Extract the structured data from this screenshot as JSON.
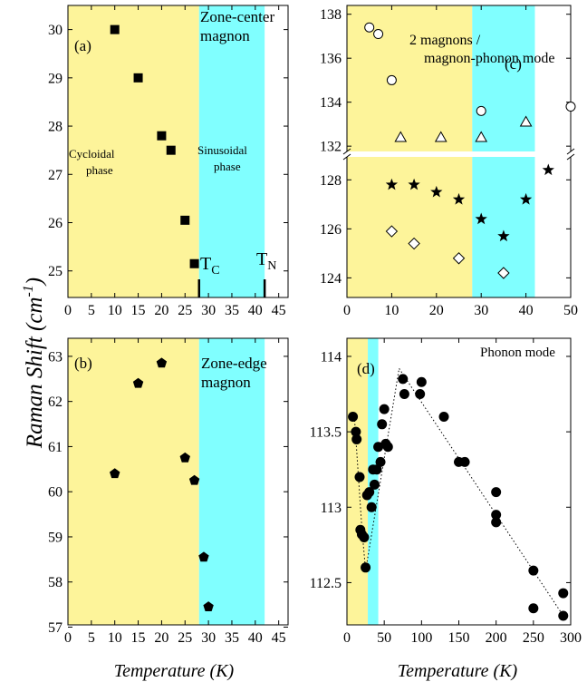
{
  "figure": {
    "ylabel": "Raman Shift (cm",
    "ylabel_sup": "-1",
    "ylabel_close": ")",
    "xlabel_left": "Temperature (K)",
    "xlabel_right": "Temperature (K)"
  },
  "colors": {
    "yellow": "#fdf49a",
    "cyan": "#80ffff",
    "marker": "#000000"
  },
  "chart_data": [
    {
      "id": "a",
      "type": "scatter",
      "panel_label": "(a)",
      "annotations": [
        "Zone-center",
        "magnon"
      ],
      "phase_labels": {
        "cycloidal": [
          "Cycloidal",
          "phase"
        ],
        "sinusoidal": [
          "Sinusoidal",
          "phase"
        ]
      },
      "transitions": {
        "TC": {
          "label": "T",
          "sub": "C",
          "x": 28
        },
        "TN": {
          "label": "T",
          "sub": "N",
          "x": 42
        }
      },
      "xlim": [
        0,
        47
      ],
      "ylim": [
        24.45,
        30.5
      ],
      "xticks": [
        0,
        5,
        10,
        15,
        20,
        25,
        30,
        35,
        40,
        45
      ],
      "yticks": [
        25,
        26,
        27,
        28,
        29,
        30
      ],
      "regions": [
        {
          "from": 0,
          "to": 28,
          "color": "yellow"
        },
        {
          "from": 28,
          "to": 42,
          "color": "cyan"
        }
      ],
      "series": [
        {
          "marker": "square",
          "x": [
            10,
            15,
            20,
            22,
            25,
            27
          ],
          "y": [
            30.0,
            29.0,
            27.8,
            27.5,
            26.05,
            25.15
          ]
        }
      ]
    },
    {
      "id": "b",
      "type": "scatter",
      "panel_label": "(b)",
      "annotations": [
        "Zone-edge",
        "magnon"
      ],
      "xlim": [
        0,
        47
      ],
      "ylim": [
        57.05,
        63.4
      ],
      "xticks": [
        0,
        5,
        10,
        15,
        20,
        25,
        30,
        35,
        40,
        45
      ],
      "yticks": [
        57,
        58,
        59,
        60,
        61,
        62,
        63
      ],
      "regions": [
        {
          "from": 0,
          "to": 28,
          "color": "yellow"
        },
        {
          "from": 28,
          "to": 42,
          "color": "cyan"
        }
      ],
      "series": [
        {
          "marker": "pentagon",
          "x": [
            10,
            15,
            20,
            25,
            27,
            29,
            30
          ],
          "y": [
            60.4,
            62.4,
            62.85,
            60.75,
            60.25,
            58.55,
            57.45
          ]
        }
      ]
    },
    {
      "id": "c",
      "type": "scatter",
      "panel_label": "(c)",
      "annotations": [
        "2 magnons /",
        "magnon-phonon mode"
      ],
      "xlim": [
        0,
        50
      ],
      "ylim_upper": [
        131.8,
        138.4
      ],
      "ylim_lower": [
        123.2,
        128.9
      ],
      "xticks": [
        0,
        10,
        20,
        30,
        40,
        50
      ],
      "yticks_upper": [
        132,
        134,
        136,
        138
      ],
      "yticks_lower": [
        124,
        126,
        128
      ],
      "regions": [
        {
          "from": 0,
          "to": 28,
          "color": "yellow"
        },
        {
          "from": 28,
          "to": 42,
          "color": "cyan"
        }
      ],
      "series": [
        {
          "marker": "circle-open",
          "x": [
            5,
            7,
            10,
            30,
            50
          ],
          "y": [
            137.4,
            137.1,
            135.0,
            133.6,
            133.8
          ]
        },
        {
          "marker": "triangle-open",
          "x": [
            12,
            21,
            30,
            40
          ],
          "y": [
            132.4,
            132.4,
            132.4,
            133.1
          ]
        },
        {
          "marker": "star",
          "x": [
            10,
            15,
            20,
            25,
            30,
            35,
            40,
            45
          ],
          "y": [
            127.8,
            127.8,
            127.5,
            127.2,
            126.4,
            125.7,
            127.2,
            128.4
          ]
        },
        {
          "marker": "diamond-open",
          "x": [
            10,
            15,
            25,
            35
          ],
          "y": [
            125.9,
            125.4,
            124.8,
            124.2
          ]
        }
      ]
    },
    {
      "id": "d",
      "type": "scatter",
      "panel_label": "(d)",
      "annotations": [
        "Phonon mode"
      ],
      "xlim": [
        0,
        300
      ],
      "ylim": [
        112.22,
        114.12
      ],
      "xticks": [
        0,
        50,
        100,
        150,
        200,
        250,
        300
      ],
      "yticks": [
        112.5,
        113.0,
        113.5,
        114.0
      ],
      "regions": [
        {
          "from": 0,
          "to": 28,
          "color": "yellow"
        },
        {
          "from": 28,
          "to": 42,
          "color": "cyan"
        }
      ],
      "series": [
        {
          "marker": "circle",
          "x": [
            8,
            12,
            13,
            17,
            18,
            20,
            23,
            25,
            27,
            30,
            33,
            35,
            37,
            40,
            42,
            45,
            47,
            50,
            52,
            55,
            75,
            77,
            98,
            100,
            130,
            150,
            158,
            200,
            200,
            200,
            250,
            250,
            290,
            290
          ],
          "y": [
            113.6,
            113.5,
            113.45,
            113.2,
            112.85,
            112.82,
            112.8,
            112.6,
            113.08,
            113.1,
            113.0,
            113.25,
            113.15,
            113.25,
            113.4,
            113.3,
            113.55,
            113.65,
            113.42,
            113.4,
            113.85,
            113.75,
            113.75,
            113.83,
            113.6,
            113.3,
            113.3,
            113.1,
            112.95,
            112.9,
            112.58,
            112.33,
            112.43,
            112.28
          ]
        }
      ],
      "guide_lines": [
        {
          "x": [
            10,
            20,
            25,
            70
          ],
          "y": [
            113.6,
            112.86,
            112.58,
            113.92
          ]
        },
        {
          "x": [
            70,
            290
          ],
          "y": [
            113.92,
            112.28
          ]
        }
      ]
    }
  ]
}
